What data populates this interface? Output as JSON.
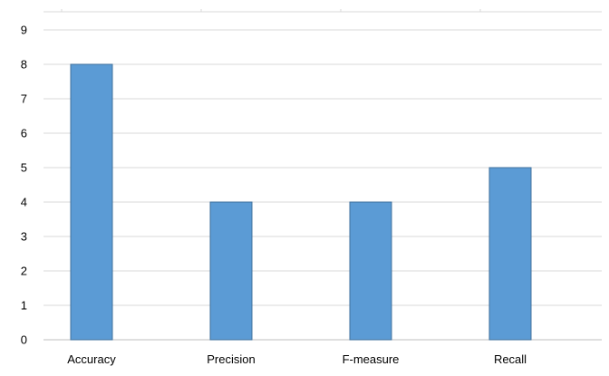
{
  "chart_data": {
    "type": "bar",
    "categories": [
      "Accuracy",
      "Precision",
      "F-measure",
      "Recall"
    ],
    "values": [
      8,
      4,
      4,
      5
    ],
    "title": "",
    "xlabel": "",
    "ylabel": "",
    "ylim": [
      0,
      9
    ],
    "yticks": [
      "0",
      "1",
      "2",
      "3",
      "4",
      "5",
      "6",
      "7",
      "8",
      "9"
    ],
    "grid": true,
    "legend": "none",
    "colors": {
      "bar_fill": "#5b9bd5",
      "bar_stroke": "#41719c",
      "grid": "#d9d9d9"
    }
  }
}
